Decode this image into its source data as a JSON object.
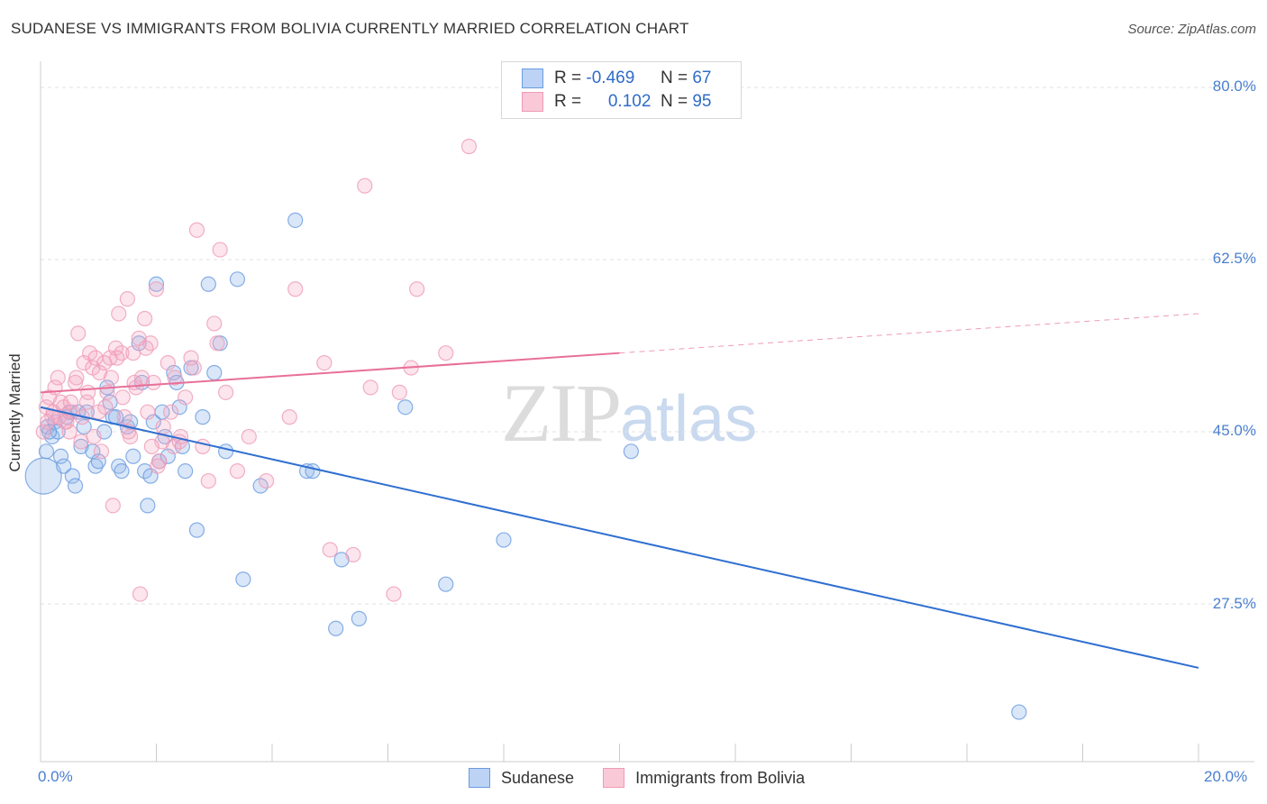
{
  "header": {
    "title": "SUDANESE VS IMMIGRANTS FROM BOLIVIA CURRENTLY MARRIED CORRELATION CHART",
    "source": "Source: ZipAtlas.com"
  },
  "watermark": {
    "zip": "ZIP",
    "atlas": "atlas"
  },
  "legend_top": {
    "row1": {
      "r_label": "R =",
      "r_value": "-0.469",
      "n_label": "N =",
      "n_value": "67"
    },
    "row2": {
      "r_label": "R =",
      "r_value": "0.102",
      "n_label": "N =",
      "n_value": "95"
    }
  },
  "chart_data": {
    "type": "scatter",
    "title": "SUDANESE VS IMMIGRANTS FROM BOLIVIA CURRENTLY MARRIED CORRELATION CHART",
    "xlabel": "",
    "ylabel": "Currently Married",
    "x_tick_labels": [
      "0.0%",
      "20.0%"
    ],
    "y_tick_labels": [
      "80.0%",
      "62.5%",
      "45.0%",
      "27.5%"
    ],
    "y_ticks": [
      80.0,
      62.5,
      45.0,
      27.5
    ],
    "xlim": [
      0,
      20
    ],
    "ylim": [
      12.5,
      83
    ],
    "grid": true,
    "legend_position": "bottom",
    "colors": {
      "sudanese": "#6a9be0",
      "bolivia": "#ef9bb6",
      "sudanese_line": "#2f6fd0",
      "bolivia_line": "#e87098"
    },
    "series": [
      {
        "name": "Sudanese",
        "r": -0.469,
        "n": 67,
        "trend": {
          "x": [
            0,
            20
          ],
          "y": [
            47.5,
            21.0
          ]
        },
        "points": [
          [
            0.05,
            40.5
          ],
          [
            0.1,
            43.0
          ],
          [
            0.12,
            45.5
          ],
          [
            0.2,
            44.5
          ],
          [
            0.25,
            46.0
          ],
          [
            0.3,
            45.0
          ],
          [
            0.35,
            42.5
          ],
          [
            0.4,
            41.5
          ],
          [
            0.45,
            46.5
          ],
          [
            0.5,
            47.0
          ],
          [
            0.55,
            40.5
          ],
          [
            0.6,
            39.5
          ],
          [
            0.65,
            47.0
          ],
          [
            0.7,
            43.5
          ],
          [
            0.75,
            45.5
          ],
          [
            0.8,
            47.0
          ],
          [
            0.9,
            43.0
          ],
          [
            0.95,
            41.5
          ],
          [
            1.0,
            42.0
          ],
          [
            1.1,
            45.0
          ],
          [
            1.15,
            49.5
          ],
          [
            1.2,
            48.0
          ],
          [
            1.25,
            46.5
          ],
          [
            1.3,
            46.5
          ],
          [
            1.35,
            41.5
          ],
          [
            1.4,
            41.0
          ],
          [
            1.5,
            45.5
          ],
          [
            1.55,
            46.0
          ],
          [
            1.6,
            42.5
          ],
          [
            1.7,
            54.0
          ],
          [
            1.75,
            50.0
          ],
          [
            1.8,
            41.0
          ],
          [
            1.85,
            37.5
          ],
          [
            1.9,
            40.5
          ],
          [
            1.95,
            46.0
          ],
          [
            2.0,
            60.0
          ],
          [
            2.05,
            42.0
          ],
          [
            2.1,
            47.0
          ],
          [
            2.15,
            44.5
          ],
          [
            2.2,
            42.5
          ],
          [
            2.3,
            51.0
          ],
          [
            2.35,
            50.0
          ],
          [
            2.4,
            47.5
          ],
          [
            2.45,
            43.5
          ],
          [
            2.5,
            41.0
          ],
          [
            2.6,
            51.5
          ],
          [
            2.7,
            35.0
          ],
          [
            2.8,
            46.5
          ],
          [
            2.9,
            60.0
          ],
          [
            3.0,
            51.0
          ],
          [
            3.1,
            54.0
          ],
          [
            3.2,
            43.0
          ],
          [
            3.4,
            60.5
          ],
          [
            3.5,
            30.0
          ],
          [
            3.8,
            39.5
          ],
          [
            4.4,
            66.5
          ],
          [
            4.6,
            41.0
          ],
          [
            4.7,
            41.0
          ],
          [
            5.1,
            25.0
          ],
          [
            5.2,
            32.0
          ],
          [
            5.5,
            26.0
          ],
          [
            6.3,
            47.5
          ],
          [
            7.0,
            29.5
          ],
          [
            8.0,
            34.0
          ],
          [
            10.2,
            43.0
          ],
          [
            16.9,
            16.5
          ],
          [
            0.15,
            45.0
          ]
        ]
      },
      {
        "name": "Immigrants from Bolivia",
        "r": 0.102,
        "n": 95,
        "trend": {
          "x": [
            0,
            10
          ],
          "y": [
            49.0,
            53.0
          ],
          "dashed_to": [
            20,
            57.0
          ]
        },
        "points": [
          [
            0.05,
            45.0
          ],
          [
            0.1,
            47.5
          ],
          [
            0.15,
            48.5
          ],
          [
            0.2,
            46.5
          ],
          [
            0.25,
            49.5
          ],
          [
            0.3,
            50.5
          ],
          [
            0.35,
            48.0
          ],
          [
            0.4,
            47.5
          ],
          [
            0.45,
            46.0
          ],
          [
            0.5,
            45.0
          ],
          [
            0.55,
            47.0
          ],
          [
            0.6,
            50.0
          ],
          [
            0.65,
            55.0
          ],
          [
            0.7,
            44.0
          ],
          [
            0.75,
            52.0
          ],
          [
            0.8,
            48.0
          ],
          [
            0.85,
            53.0
          ],
          [
            0.9,
            51.5
          ],
          [
            0.95,
            52.5
          ],
          [
            1.0,
            47.0
          ],
          [
            1.05,
            43.0
          ],
          [
            1.1,
            52.0
          ],
          [
            1.15,
            49.0
          ],
          [
            1.2,
            52.5
          ],
          [
            1.25,
            37.5
          ],
          [
            1.3,
            53.5
          ],
          [
            1.35,
            57.0
          ],
          [
            1.4,
            53.0
          ],
          [
            1.45,
            46.5
          ],
          [
            1.5,
            58.5
          ],
          [
            1.55,
            44.5
          ],
          [
            1.6,
            53.0
          ],
          [
            1.65,
            49.5
          ],
          [
            1.7,
            54.5
          ],
          [
            1.75,
            50.5
          ],
          [
            1.8,
            56.5
          ],
          [
            1.85,
            47.0
          ],
          [
            1.9,
            54.0
          ],
          [
            1.95,
            50.0
          ],
          [
            2.0,
            59.5
          ],
          [
            2.05,
            42.0
          ],
          [
            2.1,
            44.0
          ],
          [
            2.2,
            52.0
          ],
          [
            2.25,
            47.0
          ],
          [
            2.3,
            43.5
          ],
          [
            2.4,
            44.0
          ],
          [
            2.5,
            48.5
          ],
          [
            2.6,
            52.5
          ],
          [
            2.65,
            51.5
          ],
          [
            2.7,
            65.5
          ],
          [
            2.8,
            43.5
          ],
          [
            2.9,
            40.0
          ],
          [
            3.0,
            56.0
          ],
          [
            3.05,
            54.0
          ],
          [
            3.1,
            63.5
          ],
          [
            3.2,
            49.0
          ],
          [
            3.4,
            41.0
          ],
          [
            3.6,
            44.5
          ],
          [
            3.9,
            40.0
          ],
          [
            4.3,
            46.5
          ],
          [
            4.4,
            59.5
          ],
          [
            4.9,
            52.0
          ],
          [
            5.0,
            33.0
          ],
          [
            5.4,
            32.5
          ],
          [
            5.6,
            70.0
          ],
          [
            5.7,
            49.5
          ],
          [
            6.1,
            28.5
          ],
          [
            6.2,
            49.0
          ],
          [
            6.4,
            51.5
          ],
          [
            6.5,
            59.5
          ],
          [
            7.0,
            53.0
          ],
          [
            7.4,
            74.0
          ],
          [
            0.12,
            46.0
          ],
          [
            0.22,
            47.0
          ],
          [
            0.32,
            46.5
          ],
          [
            0.42,
            46.0
          ],
          [
            0.52,
            48.0
          ],
          [
            0.62,
            50.5
          ],
          [
            0.72,
            46.5
          ],
          [
            0.82,
            49.0
          ],
          [
            0.92,
            44.5
          ],
          [
            1.02,
            51.0
          ],
          [
            1.12,
            47.5
          ],
          [
            1.22,
            50.5
          ],
          [
            1.32,
            52.5
          ],
          [
            1.42,
            48.5
          ],
          [
            1.52,
            45.0
          ],
          [
            1.62,
            50.0
          ],
          [
            1.72,
            28.5
          ],
          [
            1.82,
            53.5
          ],
          [
            1.92,
            43.5
          ],
          [
            2.02,
            41.5
          ],
          [
            2.12,
            45.5
          ],
          [
            2.32,
            50.5
          ],
          [
            2.42,
            44.5
          ]
        ]
      }
    ]
  },
  "bottom_legend": {
    "item1": "Sudanese",
    "item2": "Immigrants from Bolivia"
  }
}
